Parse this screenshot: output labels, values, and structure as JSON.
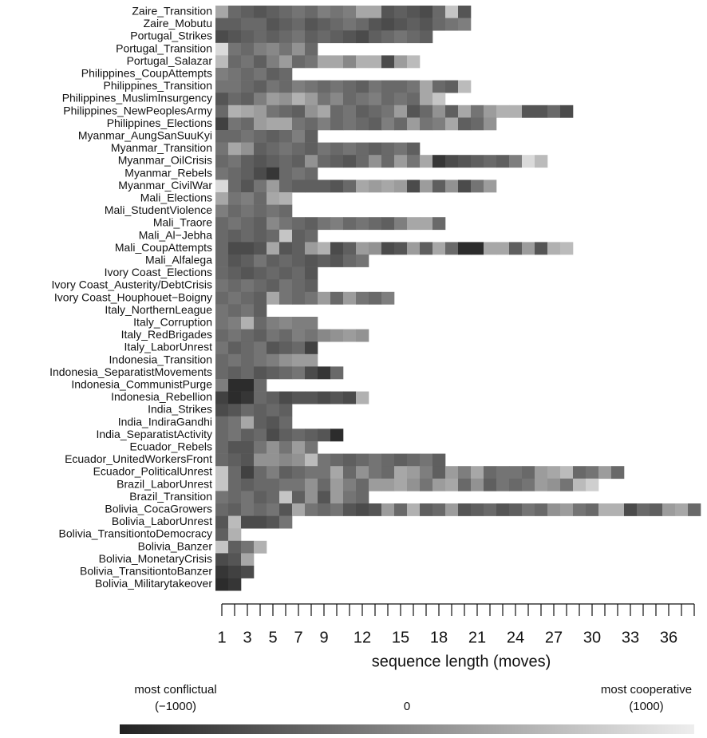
{
  "chart_data": {
    "type": "heatmap",
    "xlabel": "sequence length (moves)",
    "xlim": [
      0.5,
      38.5
    ],
    "xticks": [
      1,
      3,
      5,
      7,
      9,
      12,
      15,
      18,
      21,
      24,
      27,
      30,
      33,
      36
    ],
    "x_minor_ticks": true,
    "clim": [
      -1000,
      1000
    ],
    "color_low": "#222222",
    "color_high": "#eeeeee",
    "colorbar": {
      "titles": [
        "most conflictual",
        "most cooperative"
      ],
      "ticks": [
        {
          "value": -1000,
          "label": "(−1000)"
        },
        {
          "value": 0,
          "label": "0"
        },
        {
          "value": 1000,
          "label": "(1000)"
        }
      ]
    },
    "rows": [
      {
        "name": "Zaire_Transition",
        "values": [
          300,
          -300,
          -400,
          -500,
          -400,
          -300,
          -200,
          -300,
          -100,
          -200,
          -100,
          300,
          300,
          -500,
          -400,
          -500,
          -600,
          -300,
          600,
          -500
        ]
      },
      {
        "name": "Zaire_Mobutu",
        "values": [
          -400,
          -400,
          -300,
          -300,
          -500,
          -400,
          -300,
          -500,
          -400,
          -300,
          -200,
          -300,
          -500,
          -600,
          -500,
          -400,
          -500,
          -300,
          -200,
          -100
        ]
      },
      {
        "name": "Portugal_Strikes",
        "values": [
          -600,
          -500,
          -400,
          -300,
          -400,
          -300,
          -200,
          -400,
          -300,
          -400,
          -500,
          -600,
          -400,
          -300,
          -200,
          -300,
          -400
        ]
      },
      {
        "name": "Portugal_Transition",
        "values": [
          800,
          -200,
          -300,
          -100,
          0,
          -200,
          100,
          -300
        ]
      },
      {
        "name": "Portugal_Salazar",
        "values": [
          500,
          -300,
          -200,
          -400,
          -100,
          200,
          -300,
          -200,
          300,
          300,
          0,
          400,
          400,
          -600,
          200,
          500
        ]
      },
      {
        "name": "Philippines_CoupAttempts",
        "values": [
          -100,
          -200,
          -300,
          -200,
          -400,
          -300
        ]
      },
      {
        "name": "Philippines_Transition",
        "values": [
          -200,
          -200,
          -300,
          -400,
          -200,
          -300,
          -100,
          -200,
          -300,
          -200,
          -300,
          -400,
          -200,
          -300,
          -300,
          -200,
          300,
          -300,
          -400,
          500
        ]
      },
      {
        "name": "Philippines_MuslimInsurgency",
        "values": [
          -500,
          -300,
          -400,
          -100,
          200,
          100,
          400,
          200,
          -200,
          0,
          -300,
          -200,
          -100,
          -300,
          -200,
          -300,
          300,
          600
        ]
      },
      {
        "name": "Philippines_NewPeoplesArmy",
        "values": [
          -300,
          400,
          300,
          200,
          -200,
          -300,
          -400,
          100,
          300,
          -300,
          -200,
          -400,
          -300,
          -200,
          200,
          -500,
          -300,
          100,
          -400,
          300,
          -200,
          200,
          400,
          400,
          -500,
          -500,
          -300,
          -600
        ]
      },
      {
        "name": "Philippines_Elections",
        "values": [
          -700,
          -200,
          -300,
          200,
          300,
          300,
          -200,
          -300,
          -100,
          -300,
          -200,
          -300,
          -400,
          -100,
          -300,
          200,
          -200,
          -100,
          300,
          -400,
          -300,
          100
        ]
      },
      {
        "name": "Myanmar_AungSanSuuKyi",
        "values": [
          -300,
          -300,
          -200,
          -300,
          -400,
          -300,
          -100,
          -400
        ]
      },
      {
        "name": "Myanmar_Transition",
        "values": [
          -200,
          300,
          100,
          -400,
          -300,
          -200,
          -300,
          -400,
          -200,
          -300,
          -200,
          -300,
          -400,
          -300,
          -200,
          -400
        ]
      },
      {
        "name": "Myanmar_OilCrisis",
        "values": [
          -300,
          -200,
          -400,
          -500,
          -400,
          -300,
          -400,
          100,
          -300,
          -400,
          -500,
          -300,
          100,
          -300,
          200,
          -200,
          300,
          -800,
          -600,
          -500,
          -400,
          -300,
          -400,
          -100,
          800,
          500
        ]
      },
      {
        "name": "Myanmar_Rebels",
        "values": [
          -200,
          -300,
          -400,
          -600,
          -800,
          -300,
          -200,
          -300
        ]
      },
      {
        "name": "Myanmar_CivilWar",
        "values": [
          800,
          -300,
          -500,
          -200,
          200,
          -300,
          -400,
          -400,
          -400,
          -500,
          -300,
          300,
          200,
          300,
          200,
          -600,
          200,
          -400,
          100,
          -600,
          -200,
          200
        ]
      },
      {
        "name": "Mali_Elections",
        "values": [
          300,
          -200,
          -100,
          -300,
          300,
          400
        ]
      },
      {
        "name": "Mali_StudentViolence",
        "values": [
          -100,
          -300,
          -200,
          -300,
          -200,
          -300
        ]
      },
      {
        "name": "Mali_Traore",
        "values": [
          -300,
          -200,
          -300,
          -400,
          0,
          -200,
          -300,
          -400,
          -200,
          -100,
          -300,
          -200,
          -300,
          -400,
          -100,
          300,
          300,
          -300
        ]
      },
      {
        "name": "Mali_Al−Jebha",
        "values": [
          -300,
          -400,
          -300,
          -400,
          -300,
          600,
          -400,
          -300
        ]
      },
      {
        "name": "Mali_CoupAttempts",
        "values": [
          -300,
          -600,
          -600,
          -500,
          300,
          -500,
          -400,
          200,
          400,
          -600,
          -400,
          200,
          100,
          -600,
          -500,
          200,
          -400,
          300,
          -300,
          -900,
          -900,
          300,
          300,
          -400,
          200,
          -500,
          400,
          500
        ]
      },
      {
        "name": "Mali_Alfalega",
        "values": [
          -300,
          -500,
          -400,
          -200,
          -400,
          -300,
          -400,
          -500,
          -400,
          -500,
          -300,
          -200
        ]
      },
      {
        "name": "Ivory Coast_Elections",
        "values": [
          -300,
          -400,
          -500,
          -400,
          -300,
          -400,
          -300,
          -500
        ]
      },
      {
        "name": "Ivory Coast_Austerity/DebtCrisis",
        "values": [
          -200,
          -300,
          -200,
          -300,
          -400,
          -200,
          -300,
          -400
        ]
      },
      {
        "name": "Ivory Coast_Houphouet−Boigny",
        "values": [
          -300,
          -200,
          -300,
          -400,
          300,
          -200,
          -300,
          -200,
          200,
          -300,
          200,
          -200,
          -300,
          -100
        ]
      },
      {
        "name": "Italy_NorthernLeague",
        "values": [
          -200,
          -300,
          -200,
          -400
        ]
      },
      {
        "name": "Italy_Corruption",
        "values": [
          -200,
          -100,
          400,
          -300,
          -100,
          0,
          -100,
          -100
        ]
      },
      {
        "name": "Italy_RedBrigades",
        "values": [
          -300,
          -200,
          -300,
          -400,
          -200,
          -300,
          -100,
          -200,
          0,
          100,
          200,
          100
        ]
      },
      {
        "name": "Italy_LaborUnrest",
        "values": [
          -200,
          -400,
          -300,
          -200,
          -500,
          -400,
          -300,
          -700
        ]
      },
      {
        "name": "Indonesia_Transition",
        "values": [
          -300,
          -200,
          -300,
          -200,
          -100,
          100,
          200,
          200
        ]
      },
      {
        "name": "Indonesia_SeparatistMovements",
        "values": [
          -300,
          -400,
          -300,
          -500,
          -400,
          -300,
          -200,
          -600,
          -800,
          -300
        ]
      },
      {
        "name": "Indonesia_CommunistPurge",
        "values": [
          -100,
          -900,
          -900,
          -300
        ]
      },
      {
        "name": "Indonesia_Rebellion",
        "values": [
          -700,
          -900,
          -800,
          -300,
          -400,
          -600,
          -500,
          -500,
          -600,
          -500,
          -600,
          400
        ]
      },
      {
        "name": "India_Strikes",
        "values": [
          -600,
          -500,
          -300,
          -400,
          -300,
          -400
        ]
      },
      {
        "name": "India_IndiraGandhi",
        "values": [
          -300,
          -200,
          300,
          -400,
          -500,
          -300
        ]
      },
      {
        "name": "India_SeparatistActivity",
        "values": [
          -300,
          -200,
          -400,
          -300,
          -600,
          -400,
          -300,
          -400,
          -500,
          -900
        ]
      },
      {
        "name": "Ecuador_Rebels",
        "values": [
          -300,
          -500,
          -500,
          -200,
          100,
          -200,
          200,
          -200
        ]
      },
      {
        "name": "Ecuador_UnitedWorkersFront",
        "values": [
          -300,
          -400,
          -500,
          100,
          100,
          0,
          100,
          500,
          -200,
          -300,
          -400,
          -300,
          -200,
          -300,
          -400,
          -300,
          -200,
          -400
        ]
      },
      {
        "name": "Ecuador_PoliticalUnrest",
        "values": [
          600,
          -300,
          -700,
          -300,
          -100,
          -400,
          -300,
          -200,
          -200,
          300,
          -300,
          100,
          -200,
          -300,
          300,
          200,
          -100,
          -400,
          200,
          -100,
          300,
          -300,
          -200,
          -200,
          -300,
          200,
          300,
          500,
          -300,
          -200,
          200,
          -300
        ]
      },
      {
        "name": "Brazil_LaborUnrest",
        "values": [
          600,
          -300,
          -400,
          -300,
          -300,
          -200,
          -200,
          100,
          -300,
          200,
          -100,
          -300,
          200,
          200,
          300,
          100,
          -200,
          200,
          300,
          -300,
          100,
          -400,
          -200,
          -300,
          -200,
          200,
          100,
          -200,
          500,
          700
        ]
      },
      {
        "name": "Brazil_Transition",
        "values": [
          -200,
          -300,
          -200,
          -400,
          -300,
          600,
          -400,
          100,
          -500,
          200,
          -200,
          -300
        ]
      },
      {
        "name": "Bolivia_CocaGrowers",
        "values": [
          -300,
          -400,
          -200,
          -300,
          -200,
          -500,
          300,
          -200,
          -300,
          -200,
          -500,
          -600,
          -500,
          200,
          -300,
          400,
          -400,
          -300,
          200,
          -500,
          -400,
          -300,
          -500,
          -400,
          -200,
          -300,
          100,
          200,
          -200,
          -300,
          400,
          400,
          -600,
          -300,
          -400,
          200,
          300,
          -300
        ]
      },
      {
        "name": "Bolivia_LaborUnrest",
        "values": [
          -500,
          500,
          -600,
          -600,
          -500,
          -200
        ]
      },
      {
        "name": "Bolivia_TransitiontoDemocracy",
        "values": [
          -400,
          400
        ]
      },
      {
        "name": "Bolivia_Banzer",
        "values": [
          600,
          -400,
          -200,
          400
        ]
      },
      {
        "name": "Bolivia_MonetaryCrisis",
        "values": [
          -600,
          -500,
          300
        ]
      },
      {
        "name": "Bolivia_TransitiontoBanzer",
        "values": [
          -800,
          -700,
          -600
        ]
      },
      {
        "name": "Bolivia_Militarytakeover",
        "values": [
          -900,
          -800
        ]
      }
    ]
  }
}
